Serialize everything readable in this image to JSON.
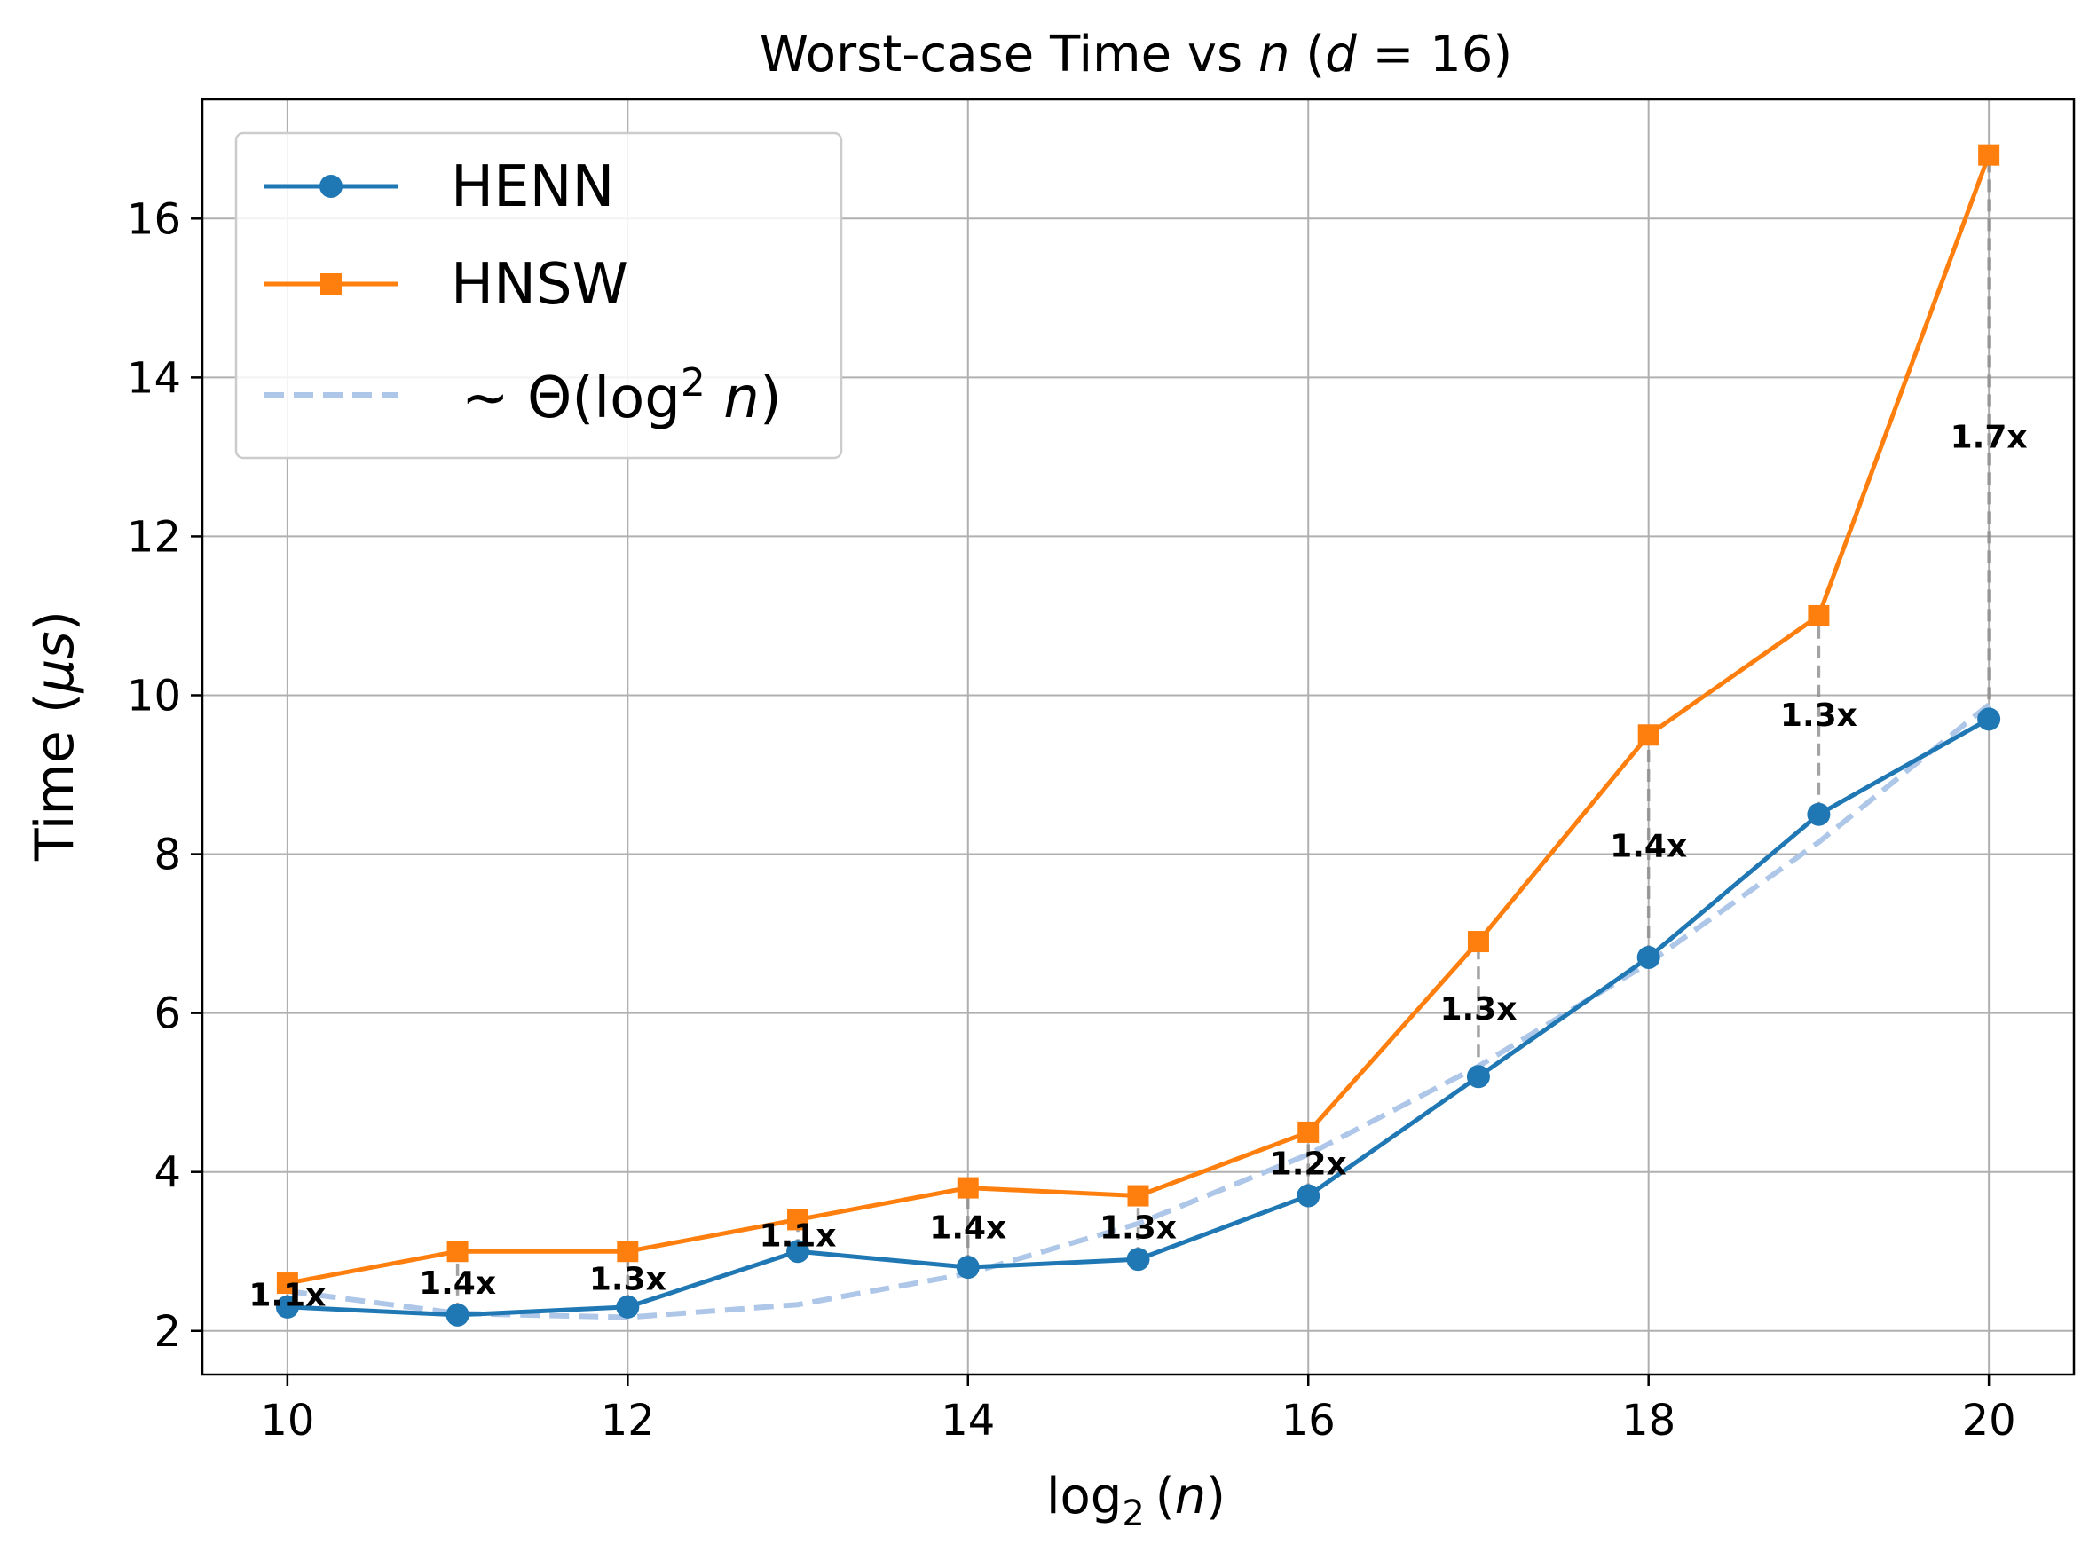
{
  "chart_data": {
    "type": "line",
    "title_parts": [
      "Worst-case Time vs ",
      "n",
      " (",
      "d",
      " = 16)"
    ],
    "xlabel_parts": [
      "log",
      "2",
      "(",
      "n",
      ")"
    ],
    "ylabel_parts": [
      "Time (",
      "μs",
      ")"
    ],
    "xlim": [
      9.5,
      20.5
    ],
    "ylim": [
      1.45,
      17.5
    ],
    "xticks": [
      10,
      12,
      14,
      16,
      18,
      20
    ],
    "yticks": [
      2,
      4,
      6,
      8,
      10,
      12,
      14,
      16
    ],
    "grid": true,
    "legend_position": "upper-left",
    "x": [
      10,
      11,
      12,
      13,
      14,
      15,
      16,
      17,
      18,
      19,
      20
    ],
    "series": [
      {
        "name": "HENN",
        "color": "#1f77b4",
        "marker": "circle",
        "values": [
          2.3,
          2.2,
          2.3,
          3.0,
          2.8,
          2.9,
          3.7,
          5.2,
          6.7,
          8.5,
          9.7
        ]
      },
      {
        "name": "HNSW",
        "color": "#ff7f0e",
        "marker": "square",
        "values": [
          2.6,
          3.0,
          3.0,
          3.4,
          3.8,
          3.7,
          4.5,
          6.9,
          9.5,
          11.0,
          16.8
        ]
      },
      {
        "name_parts": [
          "~ Θ(log",
          "2",
          " ",
          "n",
          ")"
        ],
        "color": "#aec7e8",
        "style": "dashed",
        "values": [
          2.5,
          2.22,
          2.17,
          2.33,
          2.72,
          3.35,
          4.22,
          5.33,
          6.63,
          8.15,
          9.88
        ]
      }
    ],
    "ratio_labels": [
      "1.1x",
      "1.4x",
      "1.3x",
      "1.1x",
      "1.4x",
      "1.3x",
      "1.2x",
      "1.3x",
      "1.4x",
      "1.3x",
      "1.7x"
    ]
  }
}
